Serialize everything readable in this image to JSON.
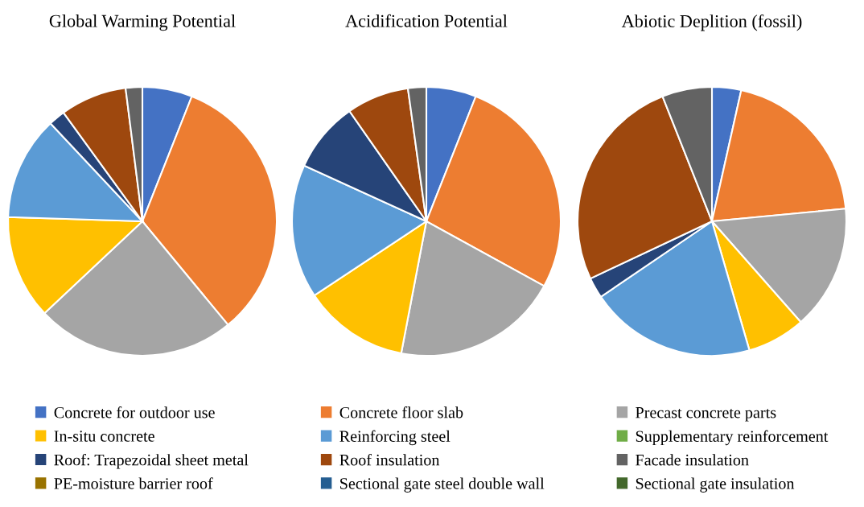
{
  "chart_data": {
    "type": "pie",
    "legend": "bottom",
    "categories": [
      "Concrete for outdoor use",
      "Concrete floor slab",
      "Precast concrete parts",
      "In-situ concrete",
      "Reinforcing steel",
      "Supplementary reinforcement",
      "Roof: Trapezoidal sheet metal",
      "Roof insulation",
      "Facade insulation",
      "PE-moisture barrier roof",
      "Sectional gate steel double wall",
      "Sectional gate insulation"
    ],
    "colors": [
      "#4472c4",
      "#ed7d31",
      "#a5a5a5",
      "#ffc000",
      "#5b9bd5",
      "#70ad47",
      "#264478",
      "#9e480e",
      "#636363",
      "#997300",
      "#255e91",
      "#43682b"
    ],
    "series": [
      {
        "name": "Global Warming Potential",
        "values": [
          6,
          33,
          24,
          12.5,
          12.5,
          0,
          2,
          8,
          2,
          0,
          0,
          0
        ]
      },
      {
        "name": "Acidification Potential",
        "values": [
          6,
          27,
          20,
          12.7,
          16.1,
          0,
          8.5,
          7.5,
          2.2,
          0,
          0,
          0
        ]
      },
      {
        "name": "Abiotic Deplition (fossil)",
        "values": [
          3.5,
          20,
          15,
          7,
          20,
          0,
          2.5,
          26,
          6,
          0,
          0,
          0
        ]
      }
    ]
  }
}
